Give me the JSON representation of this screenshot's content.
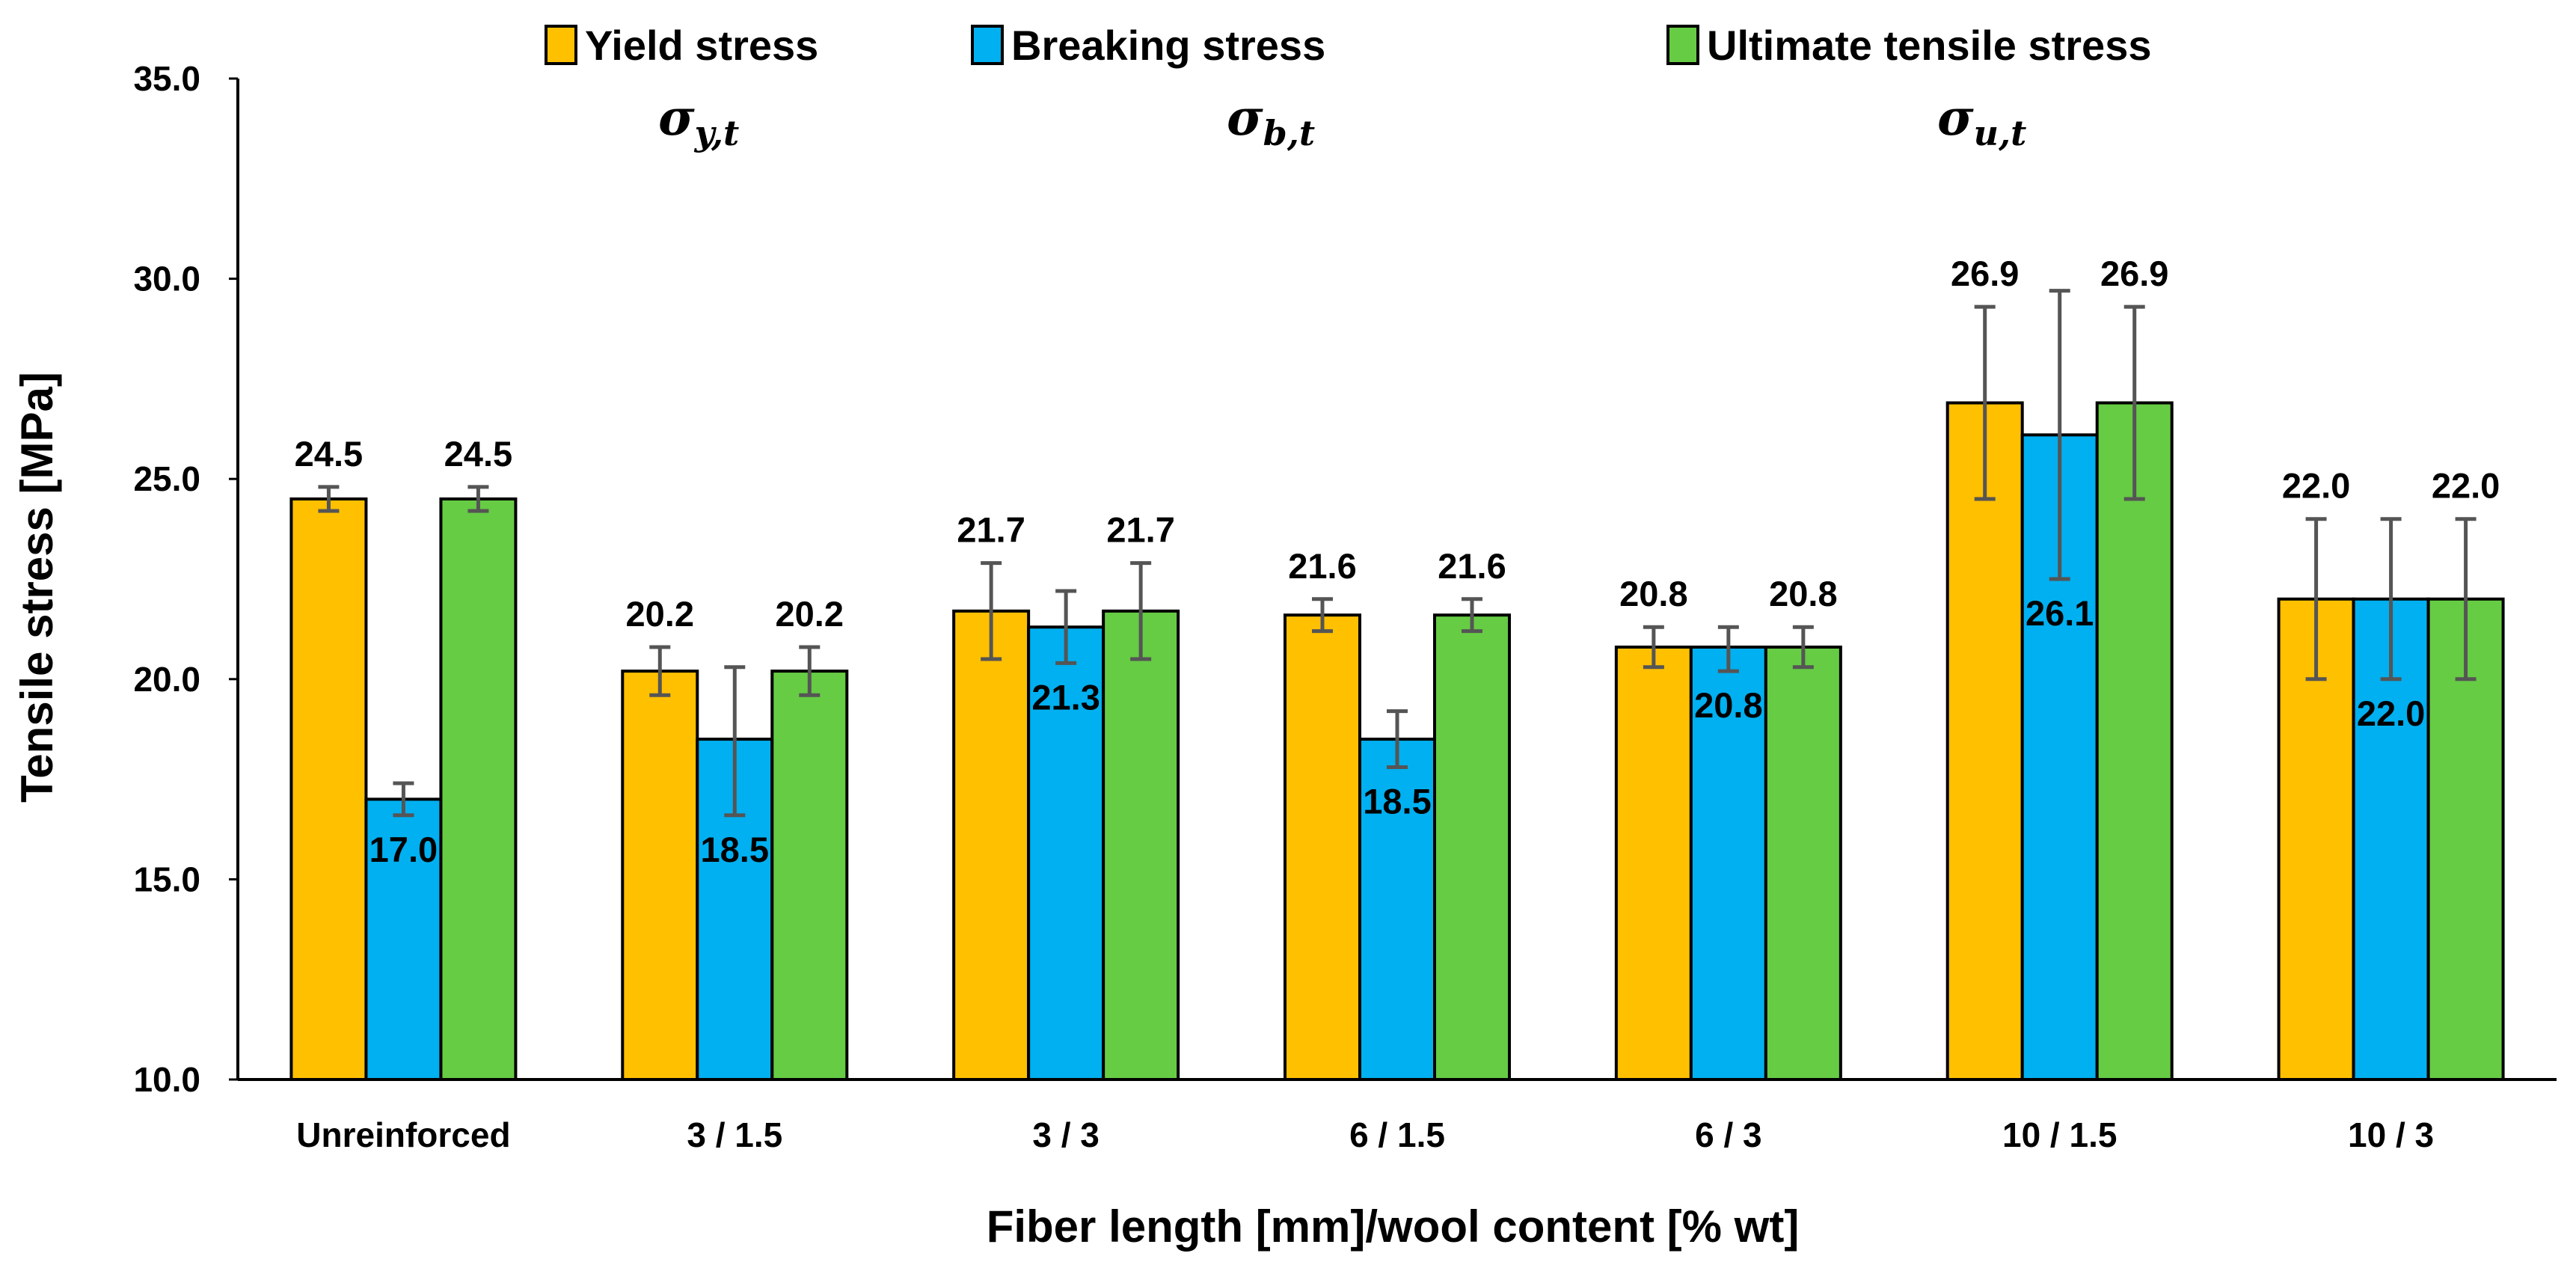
{
  "chart_data": {
    "type": "bar",
    "categories": [
      "Unreinforced",
      "3 / 1.5",
      "3 / 3",
      "6 / 1.5",
      "6 / 3",
      "10 / 1.5",
      "10 / 3"
    ],
    "series": [
      {
        "name": "Yield stress",
        "color": "#FFC000",
        "values": [
          24.5,
          20.2,
          21.7,
          21.6,
          20.8,
          26.9,
          22.0
        ],
        "error_low": [
          24.2,
          19.6,
          20.5,
          21.2,
          20.3,
          24.5,
          20.0
        ],
        "error_high": [
          24.8,
          20.8,
          22.9,
          22.0,
          21.3,
          29.3,
          24.0
        ],
        "labels": [
          "24.5",
          "20.2",
          "21.7",
          "21.6",
          "20.8",
          "26.9",
          "22.0"
        ],
        "label_position": "above"
      },
      {
        "name": "Breaking stress",
        "color": "#00B0F0",
        "values": [
          17.0,
          18.5,
          21.3,
          18.5,
          20.8,
          26.1,
          22.0
        ],
        "error_low": [
          16.6,
          16.6,
          20.4,
          17.8,
          20.2,
          22.5,
          20.0
        ],
        "error_high": [
          17.4,
          20.3,
          22.2,
          19.2,
          21.3,
          29.7,
          24.0
        ],
        "labels": [
          "17.0",
          "18.5",
          "21.3",
          "18.5",
          "20.8",
          "26.1",
          "22.0"
        ],
        "label_position": "inside"
      },
      {
        "name": "Ultimate tensile stress",
        "color": "#66CC44",
        "values": [
          24.5,
          20.2,
          21.7,
          21.6,
          20.8,
          26.9,
          22.0
        ],
        "error_low": [
          24.2,
          19.6,
          20.5,
          21.2,
          20.3,
          24.5,
          20.0
        ],
        "error_high": [
          24.8,
          20.8,
          22.9,
          22.0,
          21.3,
          29.3,
          24.0
        ],
        "labels": [
          "24.5",
          "20.2",
          "21.7",
          "21.6",
          "20.8",
          "26.9",
          "22.0"
        ],
        "label_position": "above"
      }
    ],
    "symbols": [
      {
        "main": "σ",
        "sub": "y,t"
      },
      {
        "main": "σ",
        "sub": "b,t"
      },
      {
        "main": "σ",
        "sub": "u,t"
      }
    ],
    "yticks": [
      "10.0",
      "15.0",
      "20.0",
      "25.0",
      "30.0",
      "35.0"
    ],
    "ylim": [
      10,
      35
    ],
    "ylabel": "Tensile stress [MPa]",
    "xlabel": "Fiber length [mm]/wool content [% wt]",
    "legend_position": "top"
  }
}
